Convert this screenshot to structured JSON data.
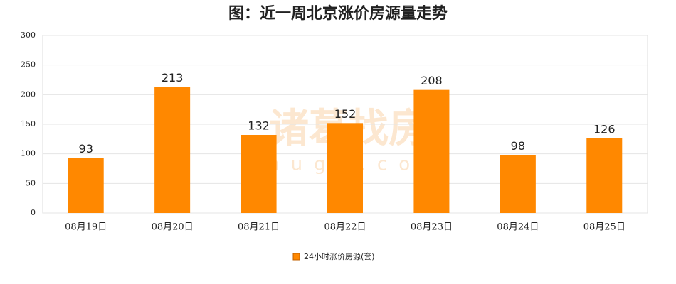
{
  "chart_data": {
    "type": "bar",
    "title": "图：近一周北京涨价房源量走势",
    "categories": [
      "08月19日",
      "08月20日",
      "08月21日",
      "08月22日",
      "08月23日",
      "08月24日",
      "08月25日"
    ],
    "series": [
      {
        "name": "24小时涨价房源(套)",
        "color": "#ff8800",
        "values": [
          93,
          213,
          132,
          152,
          208,
          98,
          126
        ]
      }
    ],
    "ylim": [
      0,
      300
    ],
    "yticks": [
      0,
      50,
      100,
      150,
      200,
      250,
      300
    ],
    "grid": true,
    "legend": "bottom",
    "watermark": {
      "brand": "诸葛找房",
      "site": "zhuge.com"
    }
  }
}
